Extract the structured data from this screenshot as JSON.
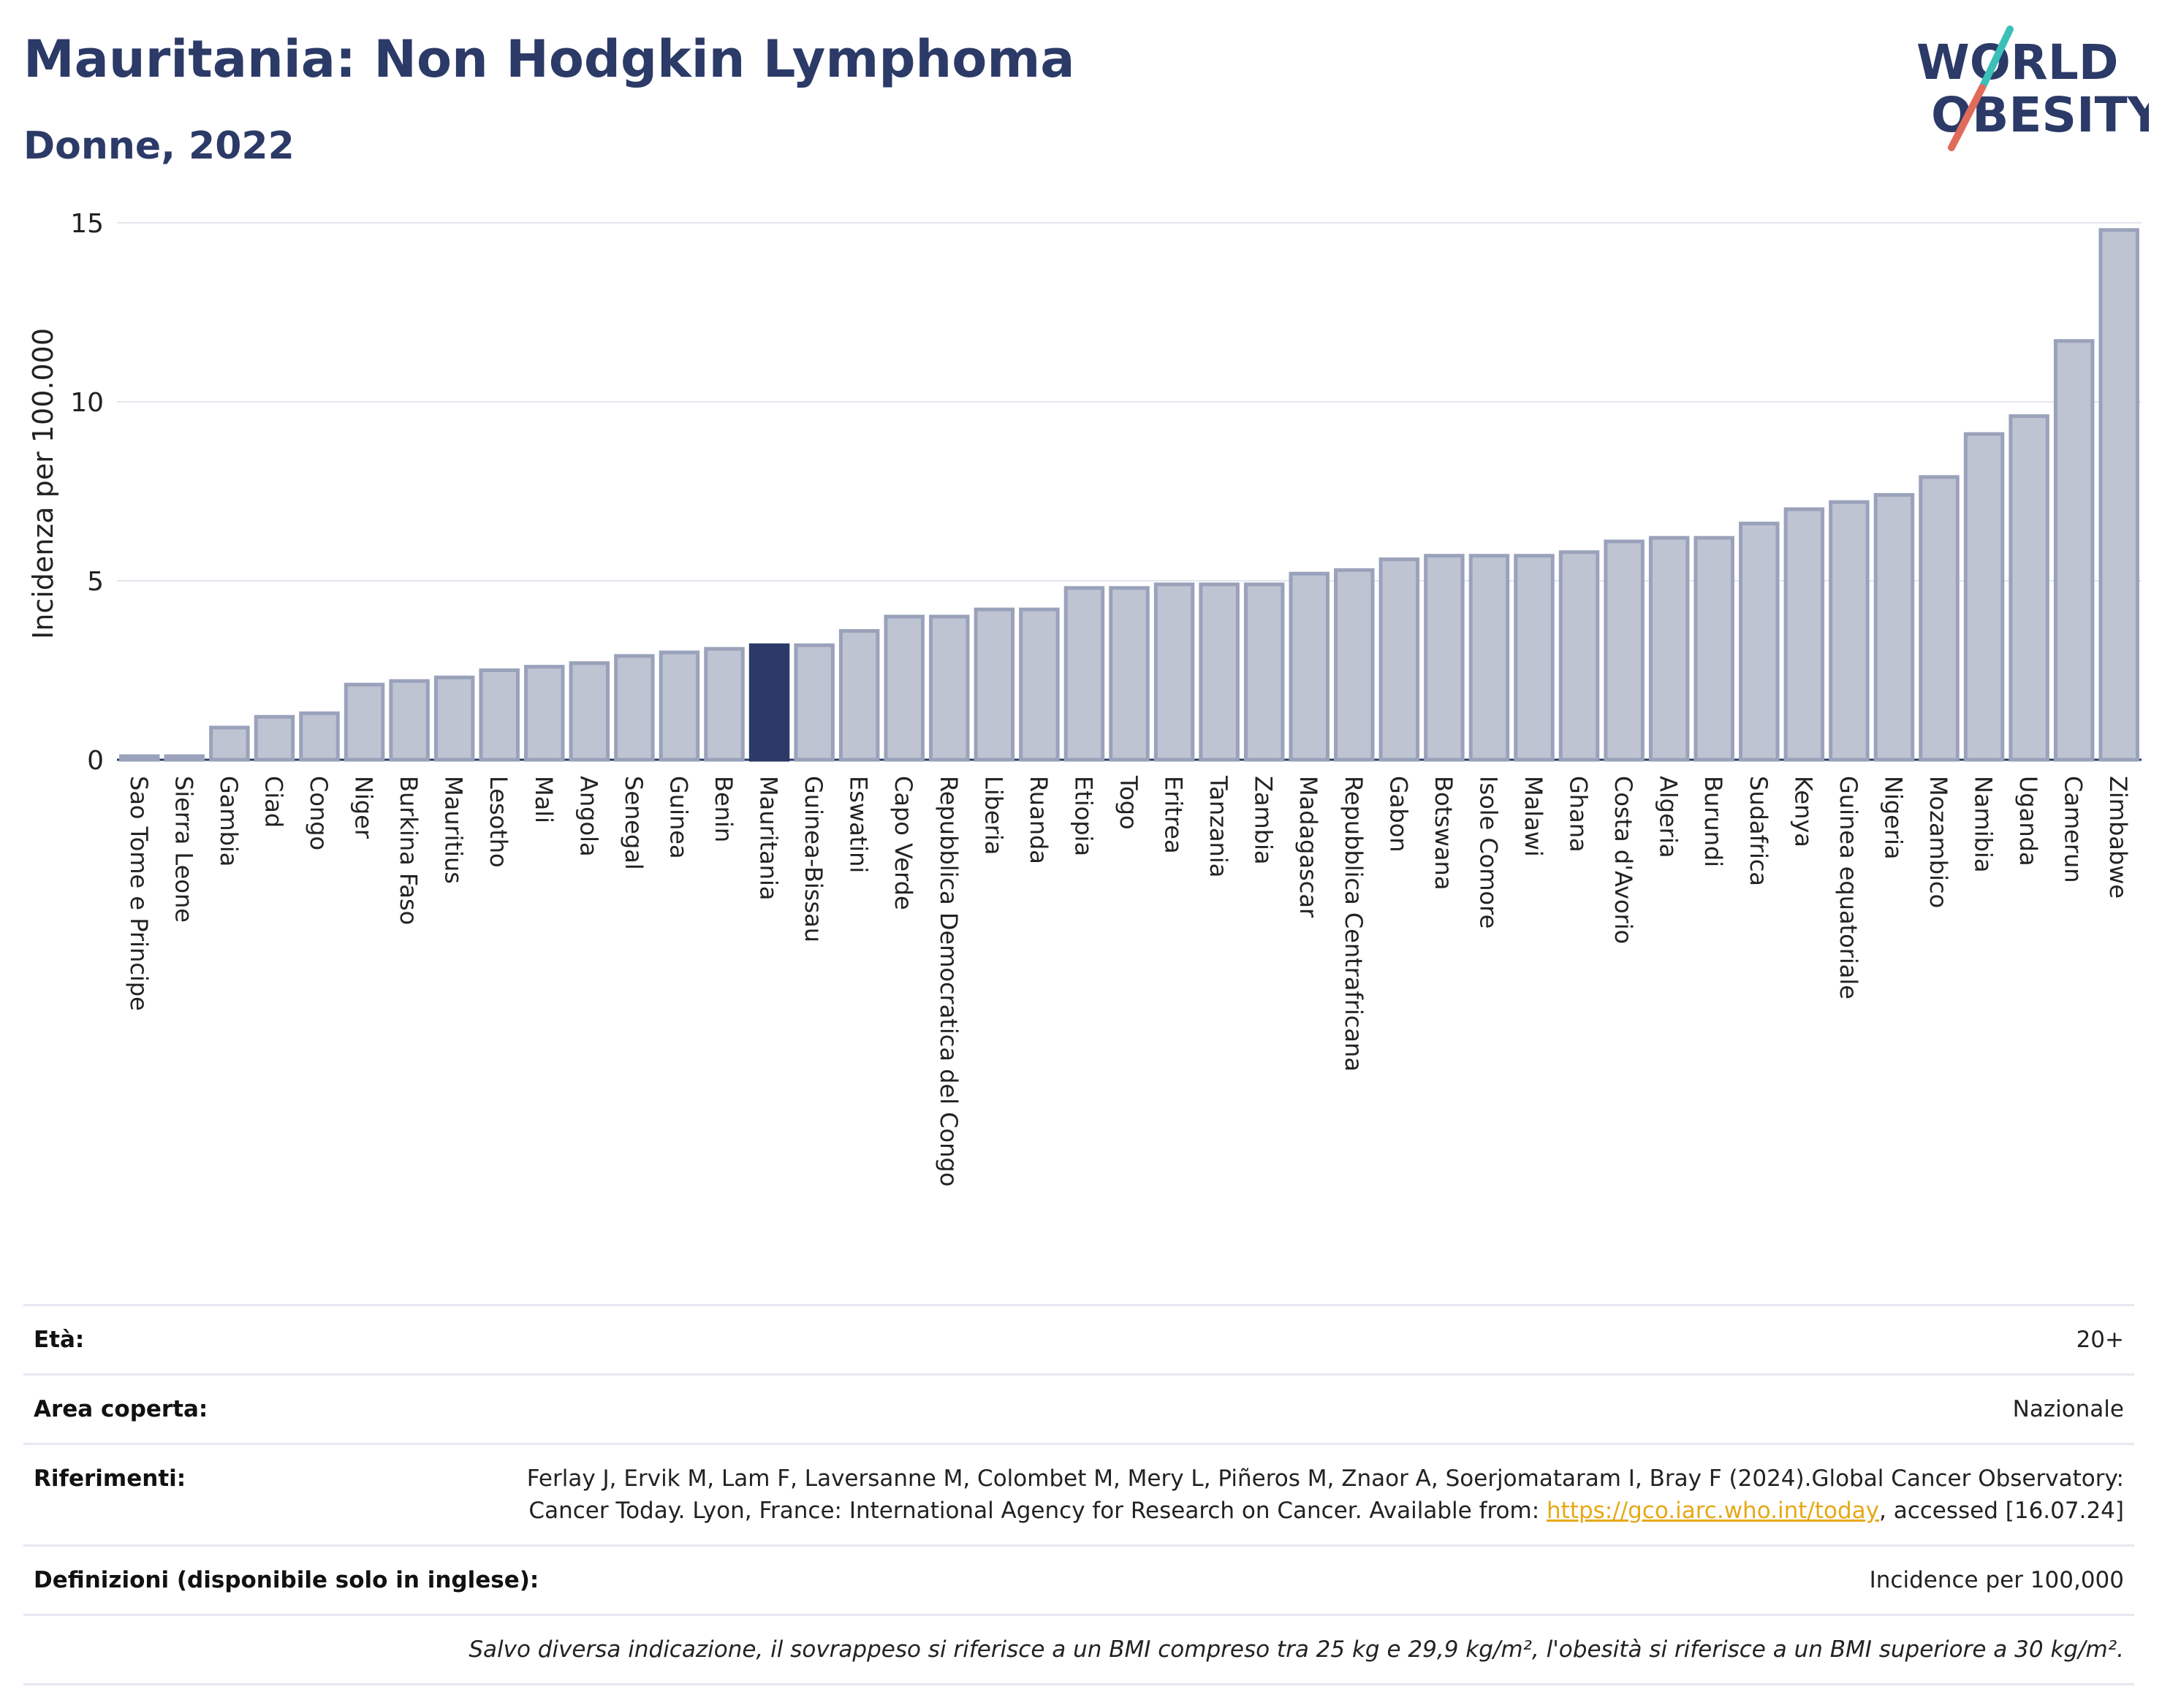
{
  "header": {
    "title": "Mauritania: Non Hodgkin Lymphoma",
    "subtitle": "Donne, 2022"
  },
  "logo": {
    "line1": "WORLD",
    "line2": "OBESITY"
  },
  "colors": {
    "bar": "#bfc4d3",
    "bar_stroke": "#9aa2bb",
    "highlight": "#2b3a67",
    "title": "#2b3a67"
  },
  "chart_data": {
    "type": "bar",
    "ylabel": "Incidenza per 100.000",
    "ylim": [
      0,
      15
    ],
    "yticks": [
      0,
      5,
      10,
      15
    ],
    "grid": true,
    "highlight": "Mauritania",
    "categories": [
      "Sao Tome e Principe",
      "Sierra Leone",
      "Gambia",
      "Ciad",
      "Congo",
      "Niger",
      "Burkina Faso",
      "Mauritius",
      "Lesotho",
      "Mali",
      "Angola",
      "Senegal",
      "Guinea",
      "Benin",
      "Mauritania",
      "Guinea-Bissau",
      "Eswatini",
      "Capo Verde",
      "Repubblica Democratica del Congo",
      "Liberia",
      "Ruanda",
      "Etiopia",
      "Togo",
      "Eritrea",
      "Tanzania",
      "Zambia",
      "Madagascar",
      "Repubblica Centrafricana",
      "Gabon",
      "Botswana",
      "Isole Comore",
      "Malawi",
      "Ghana",
      "Costa d'Avorio",
      "Algeria",
      "Burundi",
      "Sudafrica",
      "Kenya",
      "Guinea equatoriale",
      "Nigeria",
      "Mozambico",
      "Namibia",
      "Uganda",
      "Camerun",
      "Zimbabwe"
    ],
    "values": [
      0.1,
      0.1,
      0.9,
      1.2,
      1.3,
      2.1,
      2.2,
      2.3,
      2.5,
      2.6,
      2.7,
      2.9,
      3.0,
      3.1,
      3.2,
      3.2,
      3.6,
      4.0,
      4.0,
      4.2,
      4.2,
      4.8,
      4.8,
      4.9,
      4.9,
      4.9,
      5.2,
      5.3,
      5.6,
      5.7,
      5.7,
      5.7,
      5.8,
      6.1,
      6.2,
      6.2,
      6.6,
      7.0,
      7.2,
      7.4,
      7.9,
      9.1,
      9.6,
      11.7,
      14.8
    ]
  },
  "info": {
    "age_label": "Età:",
    "age_value": "20+",
    "area_label": "Area coperta:",
    "area_value": "Nazionale",
    "ref_label": "Riferimenti:",
    "ref_text_1": "Ferlay J, Ervik M, Lam F, Laversanne M, Colombet M, Mery L, Piñeros M, Znaor A, Soerjomataram I, Bray F (2024).Global Cancer Observatory: Cancer Today. Lyon, France: International Agency for Research on Cancer. Available from: ",
    "ref_link": "https://gco.iarc.who.int/today",
    "ref_text_2": ", accessed [16.07.24]",
    "def_label": "Definizioni (disponibile solo in inglese):",
    "def_value": "Incidence per 100,000",
    "note": "Salvo diversa indicazione, il sovrappeso si riferisce a un BMI compreso tra 25 kg e 29,9 kg/m², l'obesità si riferisce a un BMI superiore a 30 kg/m²."
  }
}
